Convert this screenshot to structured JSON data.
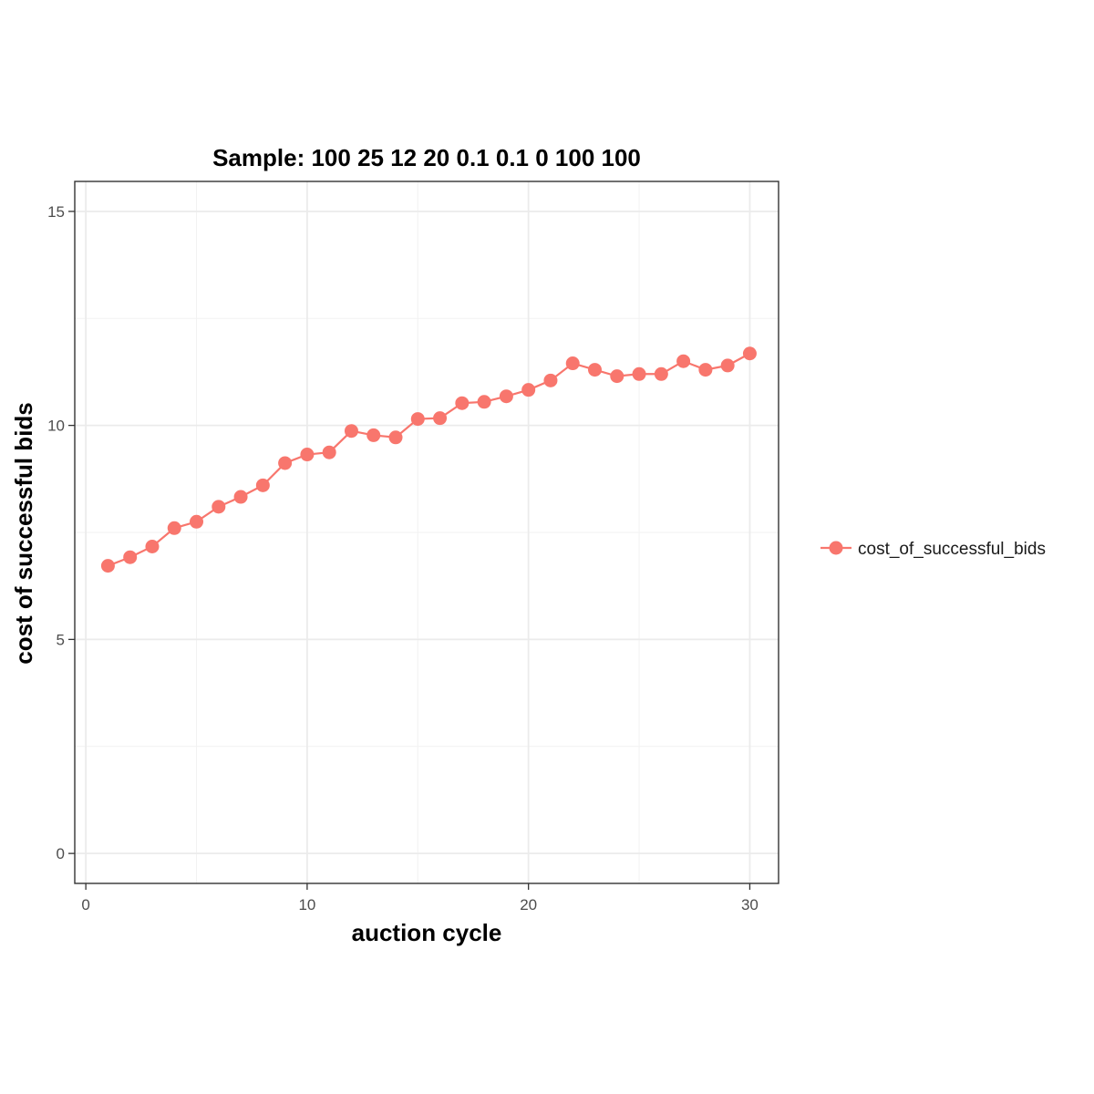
{
  "chart_data": {
    "type": "line",
    "title": "Sample: 100 25 12 20 0.1 0.1 0 100 100",
    "xlabel": "auction cycle",
    "ylabel": "cost of successful bids",
    "xlim": [
      -0.5,
      31.3
    ],
    "ylim": [
      -0.7,
      15.7
    ],
    "x_ticks": [
      0,
      10,
      20,
      30
    ],
    "y_ticks": [
      0,
      5,
      10,
      15
    ],
    "x_tick_labels": [
      "0",
      "10",
      "20",
      "30"
    ],
    "y_tick_labels": [
      "0",
      "5",
      "10",
      "15"
    ],
    "grid": true,
    "legend_position": "right",
    "series": [
      {
        "name": "cost_of_successful_bids",
        "color": "#f8766d",
        "x": [
          1,
          2,
          3,
          4,
          5,
          6,
          7,
          8,
          9,
          10,
          11,
          12,
          13,
          14,
          15,
          16,
          17,
          18,
          19,
          20,
          21,
          22,
          23,
          24,
          25,
          26,
          27,
          28,
          29,
          30
        ],
        "y": [
          6.72,
          6.92,
          7.17,
          7.6,
          7.75,
          8.1,
          8.33,
          8.6,
          9.12,
          9.32,
          9.37,
          9.87,
          9.77,
          9.72,
          10.15,
          10.17,
          10.52,
          10.55,
          10.68,
          10.83,
          11.05,
          11.45,
          11.3,
          11.15,
          11.2,
          11.2,
          11.5,
          11.3,
          11.4,
          11.68
        ]
      }
    ]
  }
}
